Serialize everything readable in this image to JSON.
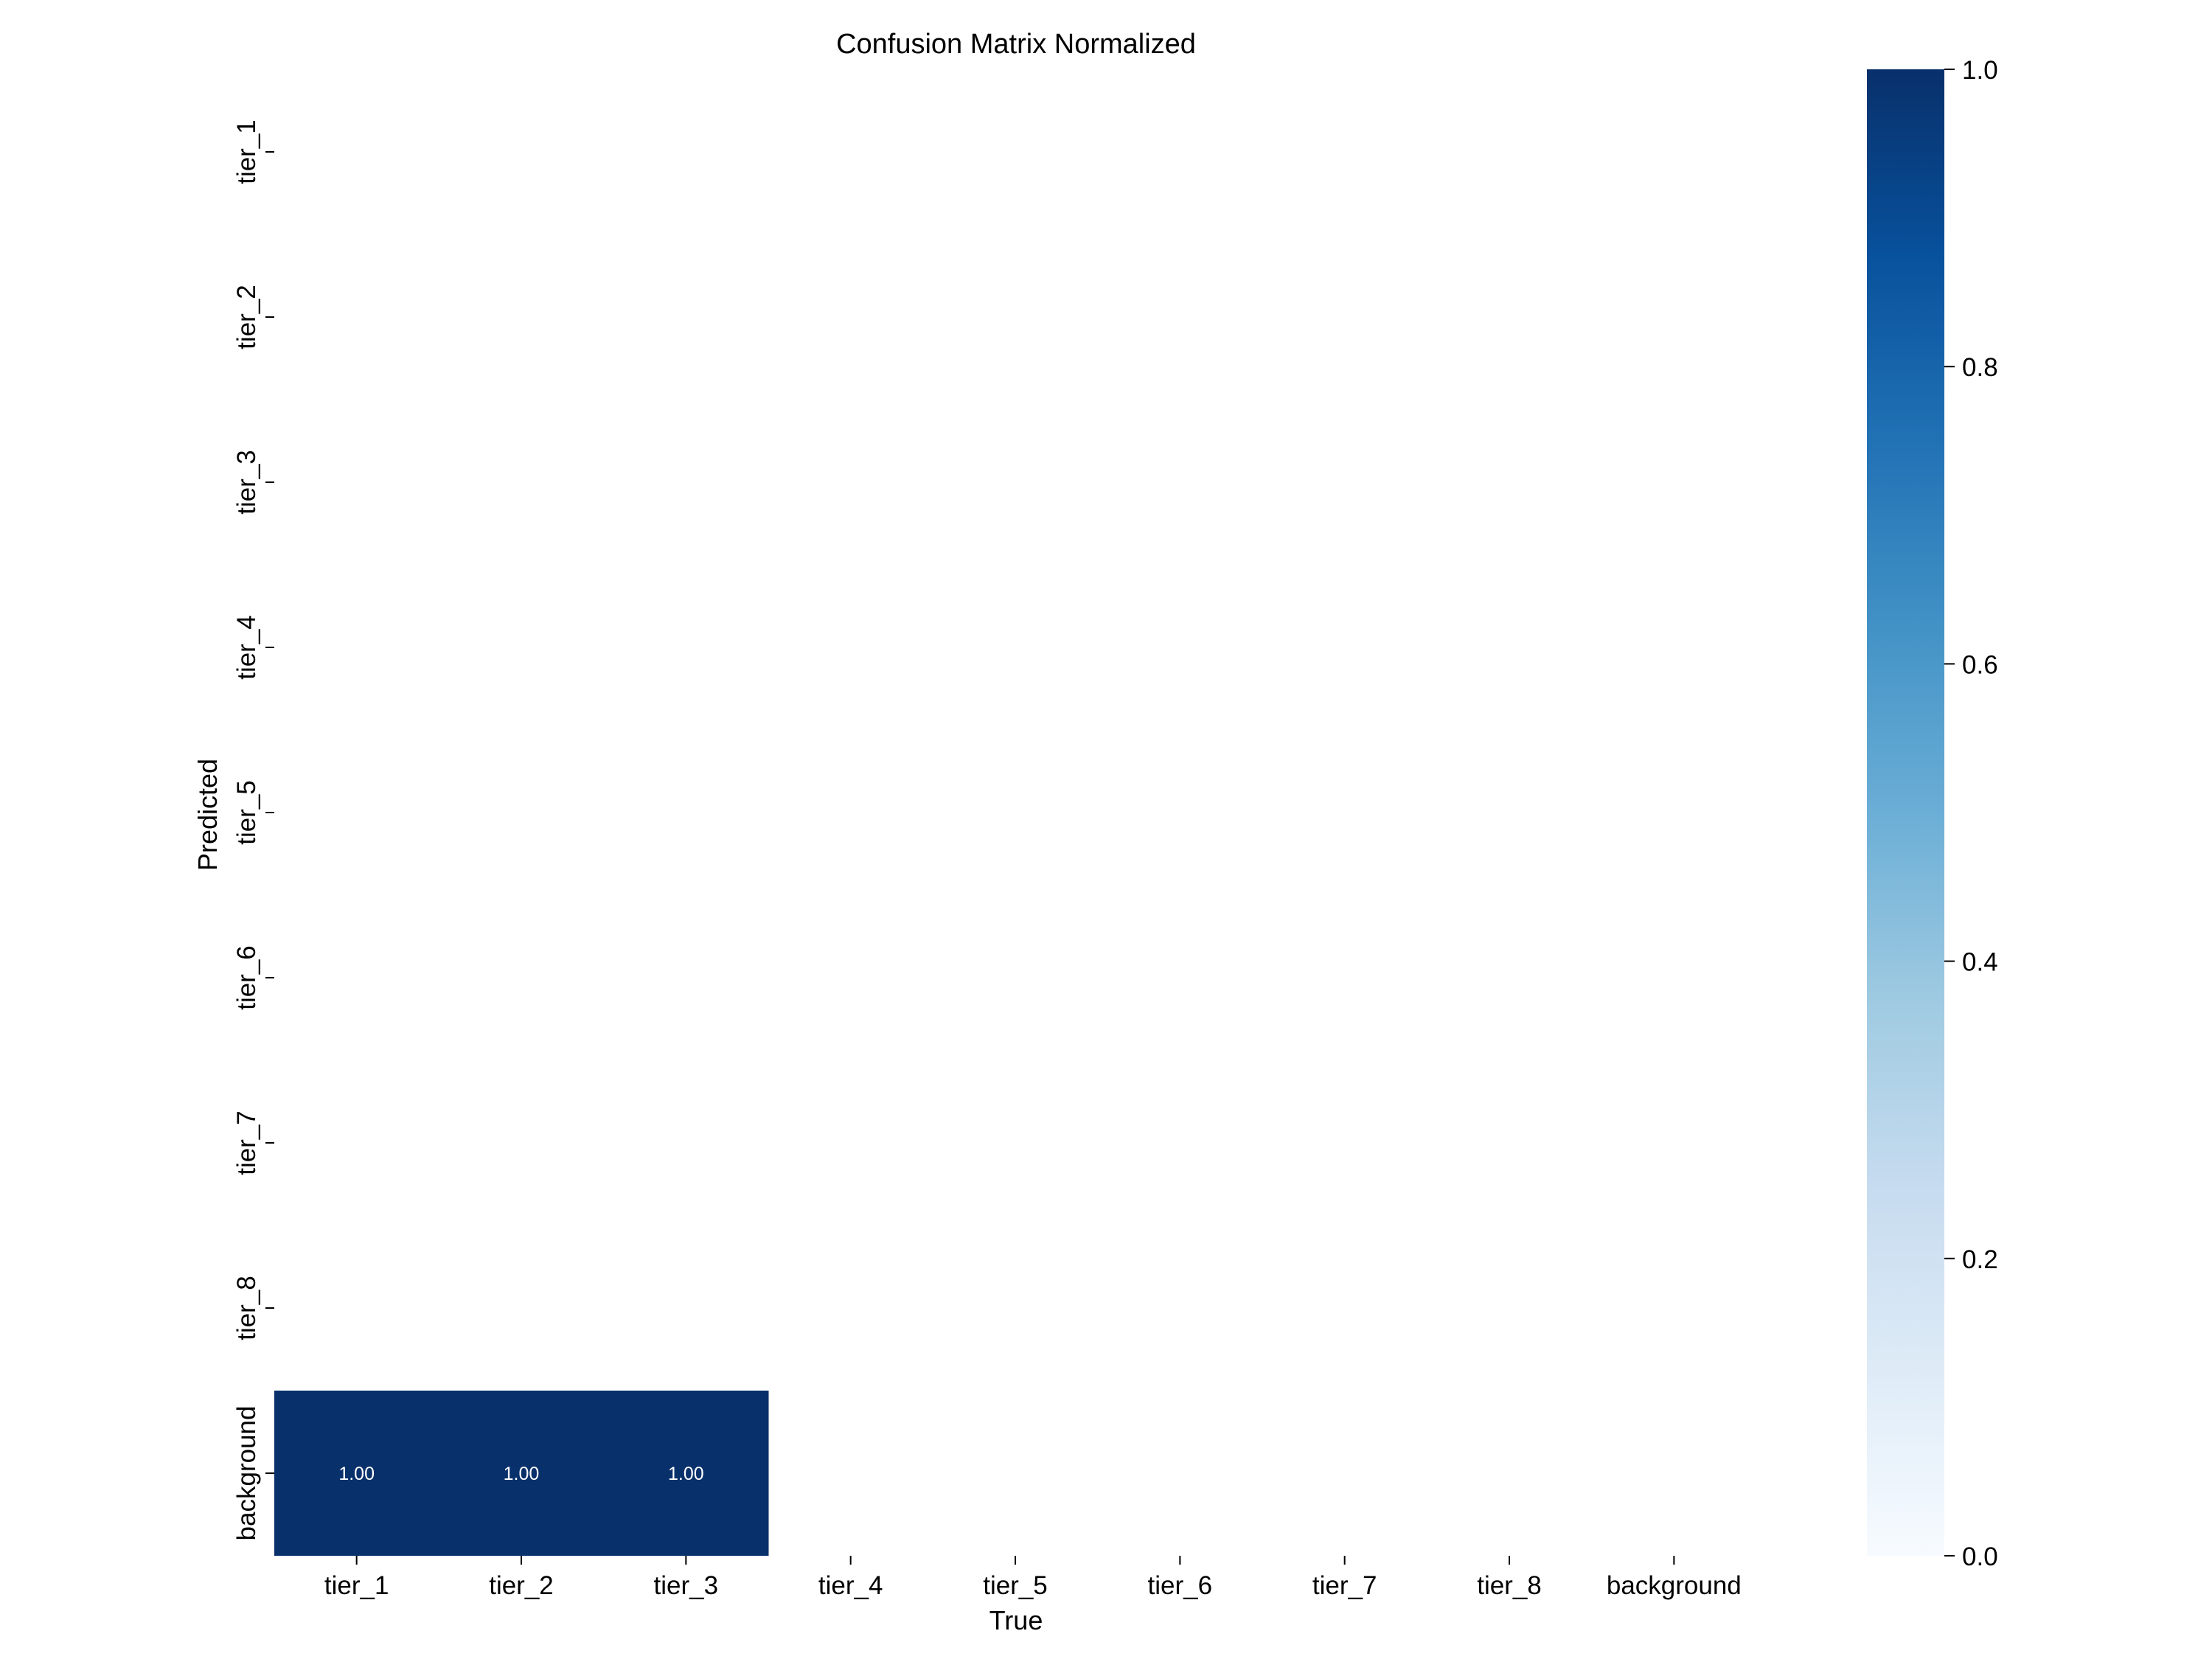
{
  "chart_data": {
    "type": "heatmap",
    "title": "Confusion Matrix Normalized",
    "xlabel": "True",
    "ylabel": "Predicted",
    "x_categories": [
      "tier_1",
      "tier_2",
      "tier_3",
      "tier_4",
      "tier_5",
      "tier_6",
      "tier_7",
      "tier_8",
      "background"
    ],
    "y_categories": [
      "tier_1",
      "tier_2",
      "tier_3",
      "tier_4",
      "tier_5",
      "tier_6",
      "tier_7",
      "tier_8",
      "background"
    ],
    "cells": [
      {
        "row": 8,
        "col": 0,
        "value": 1.0,
        "label": "1.00"
      },
      {
        "row": 8,
        "col": 1,
        "value": 1.0,
        "label": "1.00"
      },
      {
        "row": 8,
        "col": 2,
        "value": 1.0,
        "label": "1.00"
      }
    ],
    "colorbar": {
      "min": 0.0,
      "max": 1.0,
      "ticks": [
        0.0,
        0.2,
        0.4,
        0.6,
        0.8,
        1.0
      ],
      "tick_labels": [
        "0.0",
        "0.2",
        "0.4",
        "0.6",
        "0.8",
        "1.0"
      ],
      "colormap": "Blues",
      "low_color": "#f7fbff",
      "high_color": "#08306b"
    },
    "cell_text_color": "#ffffff"
  }
}
